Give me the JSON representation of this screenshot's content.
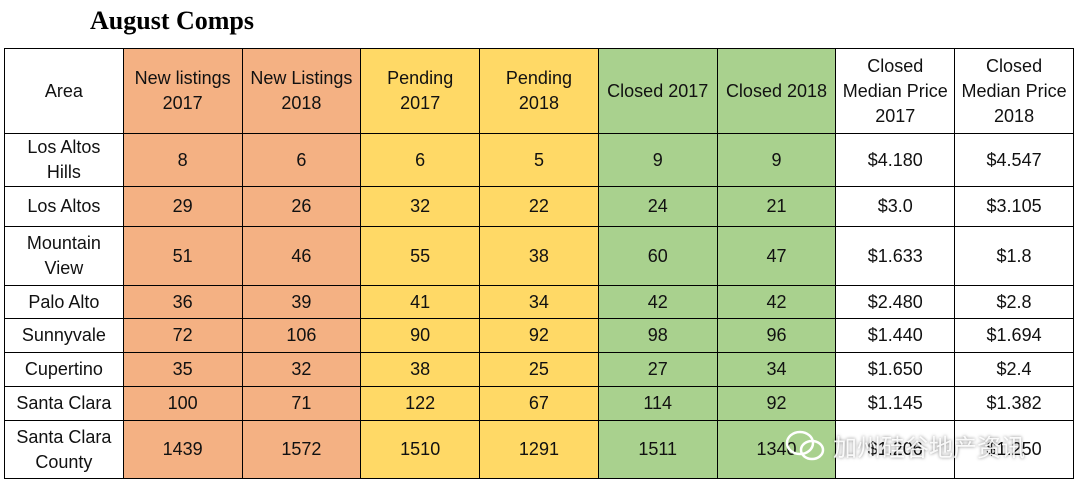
{
  "header": {
    "title": "August Comps"
  },
  "table": {
    "columns": [
      "Area",
      "New listings 2017",
      "New Listings 2018",
      "Pending 2017",
      "Pending 2018",
      "Closed 2017",
      "Closed 2018",
      "Closed Median Price 2017",
      "Closed Median Price 2018"
    ],
    "rows": [
      [
        "Los Altos Hills",
        "8",
        "6",
        "6",
        "5",
        "9",
        "9",
        "$4.180",
        "$4.547"
      ],
      [
        "Los Altos",
        "29",
        "26",
        "32",
        "22",
        "24",
        "21",
        "$3.0",
        "$3.105"
      ],
      [
        "Mountain View",
        "51",
        "46",
        "55",
        "38",
        "60",
        "47",
        "$1.633",
        "$1.8"
      ],
      [
        "Palo Alto",
        "36",
        "39",
        "41",
        "34",
        "42",
        "42",
        "$2.480",
        "$2.8"
      ],
      [
        "Sunnyvale",
        "72",
        "106",
        "90",
        "92",
        "98",
        "96",
        "$1.440",
        "$1.694"
      ],
      [
        "Cupertino",
        "35",
        "32",
        "38",
        "25",
        "27",
        "34",
        "$1.650",
        "$2.4"
      ],
      [
        "Santa Clara",
        "100",
        "71",
        "122",
        "67",
        "114",
        "92",
        "$1.145",
        "$1.382"
      ],
      [
        "Santa Clara County",
        "1439",
        "1572",
        "1510",
        "1291",
        "1511",
        "1340",
        "$1.206",
        "$1.250"
      ]
    ]
  },
  "watermark": "加州硅谷地产资讯"
}
